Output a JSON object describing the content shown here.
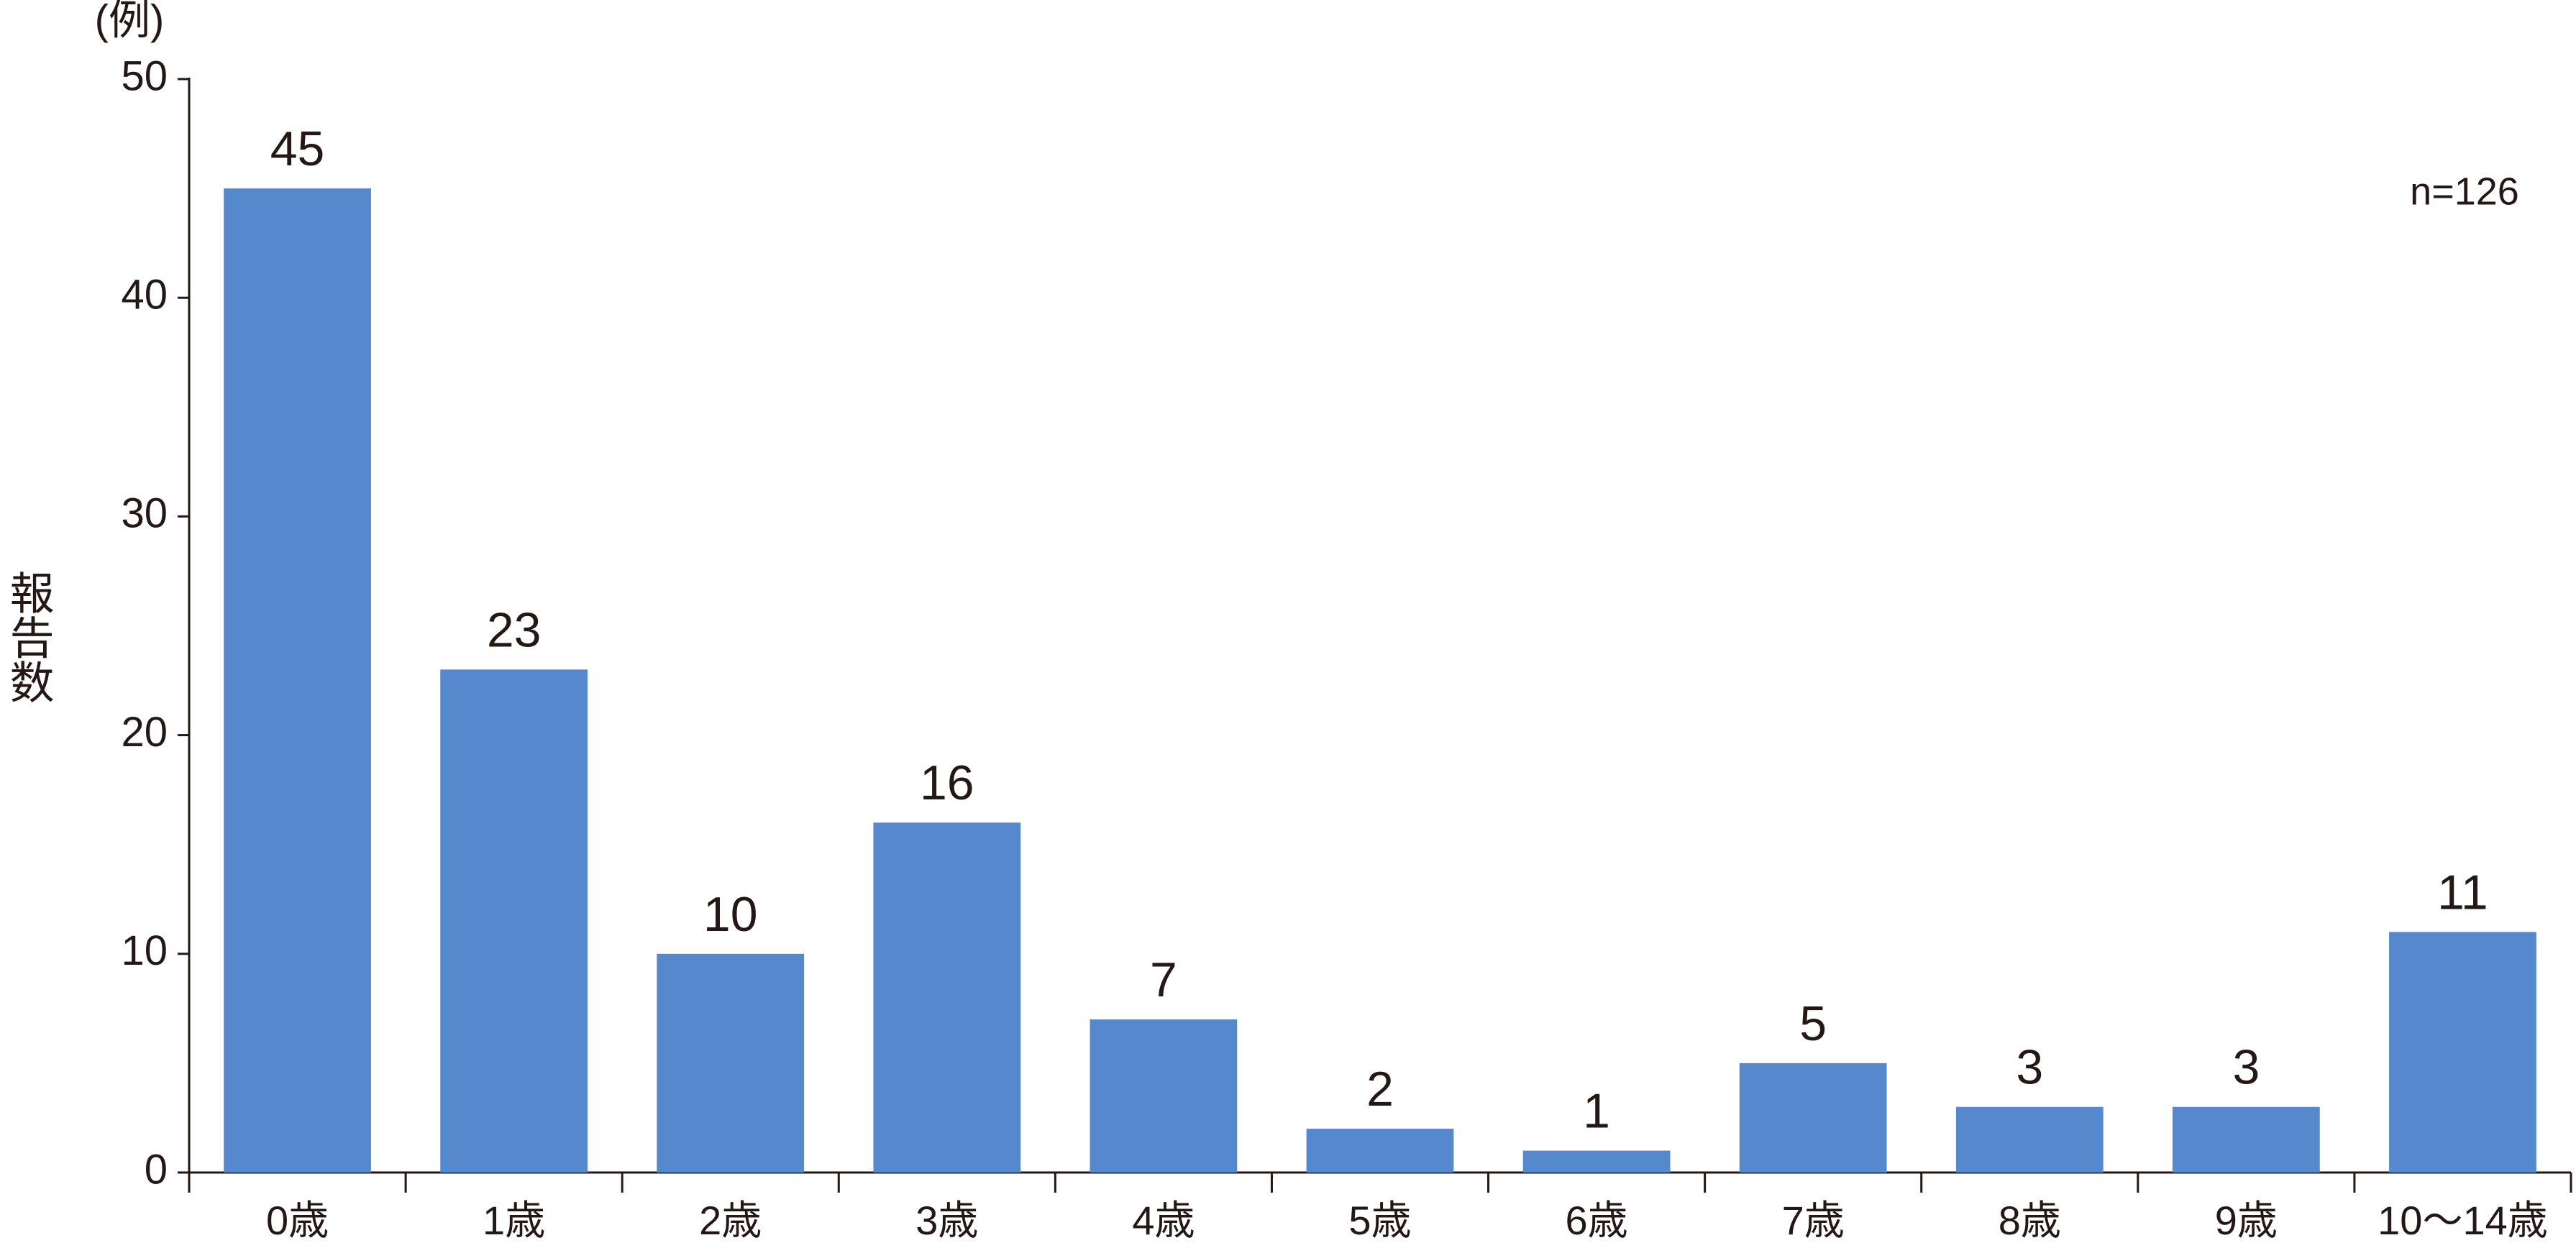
{
  "chart_data": {
    "type": "bar",
    "unit_label": "(例)",
    "y_label": "報告数",
    "annotation": "n=126",
    "categories": [
      "0歳",
      "1歳",
      "2歳",
      "3歳",
      "4歳",
      "5歳",
      "6歳",
      "7歳",
      "8歳",
      "9歳",
      "10〜14歳"
    ],
    "values": [
      45,
      23,
      10,
      16,
      7,
      2,
      1,
      5,
      3,
      3,
      11
    ],
    "color": "#5588cc",
    "ylim": [
      0,
      50
    ],
    "yticks": [
      0,
      10,
      20,
      30,
      40,
      50
    ],
    "grid": false
  }
}
